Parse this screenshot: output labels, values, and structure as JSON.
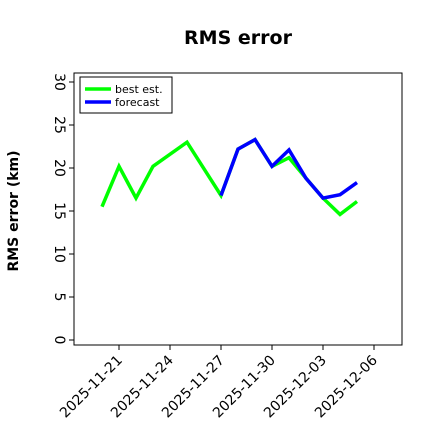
{
  "chart_data": {
    "type": "line",
    "title": "RMS error",
    "ylabel": "RMS error (km)",
    "xlabel": "",
    "ylim": [
      0,
      32
    ],
    "yticks": [
      0,
      5,
      10,
      15,
      20,
      25,
      30
    ],
    "xlim": [
      "2025-11-19",
      "2025-12-07"
    ],
    "xticks": [
      {
        "label": "2025-11-21",
        "color": "#000000"
      },
      {
        "label": "2025-11-24",
        "color": "#000000"
      },
      {
        "label": "2025-11-27",
        "color": "#2e8b22"
      },
      {
        "label": "2025-11-30",
        "color": "#000000"
      },
      {
        "label": "2025-12-03",
        "color": "#000000"
      },
      {
        "label": "2025-12-06",
        "color": "#000000"
      }
    ],
    "xtick_dates": [
      "2025-11-21",
      "2025-11-24",
      "2025-11-27",
      "2025-11-30",
      "2025-12-03",
      "2025-12-06"
    ],
    "legend_position": "upper-left",
    "series": [
      {
        "name": "best est.",
        "color": "#00ff00",
        "x": [
          "2025-11-20",
          "2025-11-21",
          "2025-11-22",
          "2025-11-23",
          "2025-11-25",
          "2025-11-27",
          "2025-11-28",
          "2025-11-29",
          "2025-11-30",
          "2025-12-01",
          "2025-12-02",
          "2025-12-03",
          "2025-12-04",
          "2025-12-05"
        ],
        "y": [
          15.5,
          20.2,
          16.5,
          20.2,
          23.0,
          16.8,
          22.2,
          23.3,
          20.2,
          21.2,
          18.8,
          16.5,
          14.6,
          16.1
        ]
      },
      {
        "name": "forecast",
        "color": "#0000ff",
        "x": [
          "2025-11-27",
          "2025-11-28",
          "2025-11-29",
          "2025-11-30",
          "2025-12-01",
          "2025-12-02",
          "2025-12-03",
          "2025-12-04",
          "2025-12-05"
        ],
        "y": [
          16.8,
          22.2,
          23.3,
          20.2,
          22.1,
          18.8,
          16.5,
          16.9,
          18.3
        ]
      }
    ]
  }
}
